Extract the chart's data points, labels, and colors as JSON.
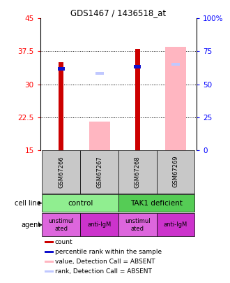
{
  "title": "GDS1467 / 1436518_at",
  "samples": [
    "GSM67266",
    "GSM67267",
    "GSM67268",
    "GSM67269"
  ],
  "ylim_left": [
    15,
    45
  ],
  "ylim_right": [
    0,
    100
  ],
  "yticks_left": [
    15,
    22.5,
    30,
    37.5,
    45
  ],
  "yticks_right": [
    0,
    25,
    50,
    75,
    100
  ],
  "bar_count_top": [
    35.0,
    null,
    38.0,
    null
  ],
  "bar_count_bottom": [
    15,
    null,
    15,
    null
  ],
  "bar_absent_top": [
    null,
    21.5,
    null,
    38.5
  ],
  "bar_absent_bottom": [
    null,
    15,
    null,
    15
  ],
  "bar_pct_center": [
    33.5,
    null,
    34.0,
    null
  ],
  "bar_pct_absent_center": [
    null,
    32.5,
    null,
    34.5
  ],
  "color_count": "#cc0000",
  "color_pct": "#1111cc",
  "color_absent_value": "#ffb6c1",
  "color_absent_rank": "#c0c8ff",
  "cell_line_labels": [
    "control",
    "TAK1 deficient"
  ],
  "cell_line_color_control": "#90ee90",
  "cell_line_color_tak1": "#55cc55",
  "agent_labels": [
    "unstimul\nated",
    "anti-IgM",
    "unstimul\nated",
    "anti-IgM"
  ],
  "agent_colors_list": [
    "#dd66dd",
    "#cc33cc",
    "#dd66dd",
    "#cc33cc"
  ],
  "x_positions": [
    0,
    1,
    2,
    3
  ]
}
